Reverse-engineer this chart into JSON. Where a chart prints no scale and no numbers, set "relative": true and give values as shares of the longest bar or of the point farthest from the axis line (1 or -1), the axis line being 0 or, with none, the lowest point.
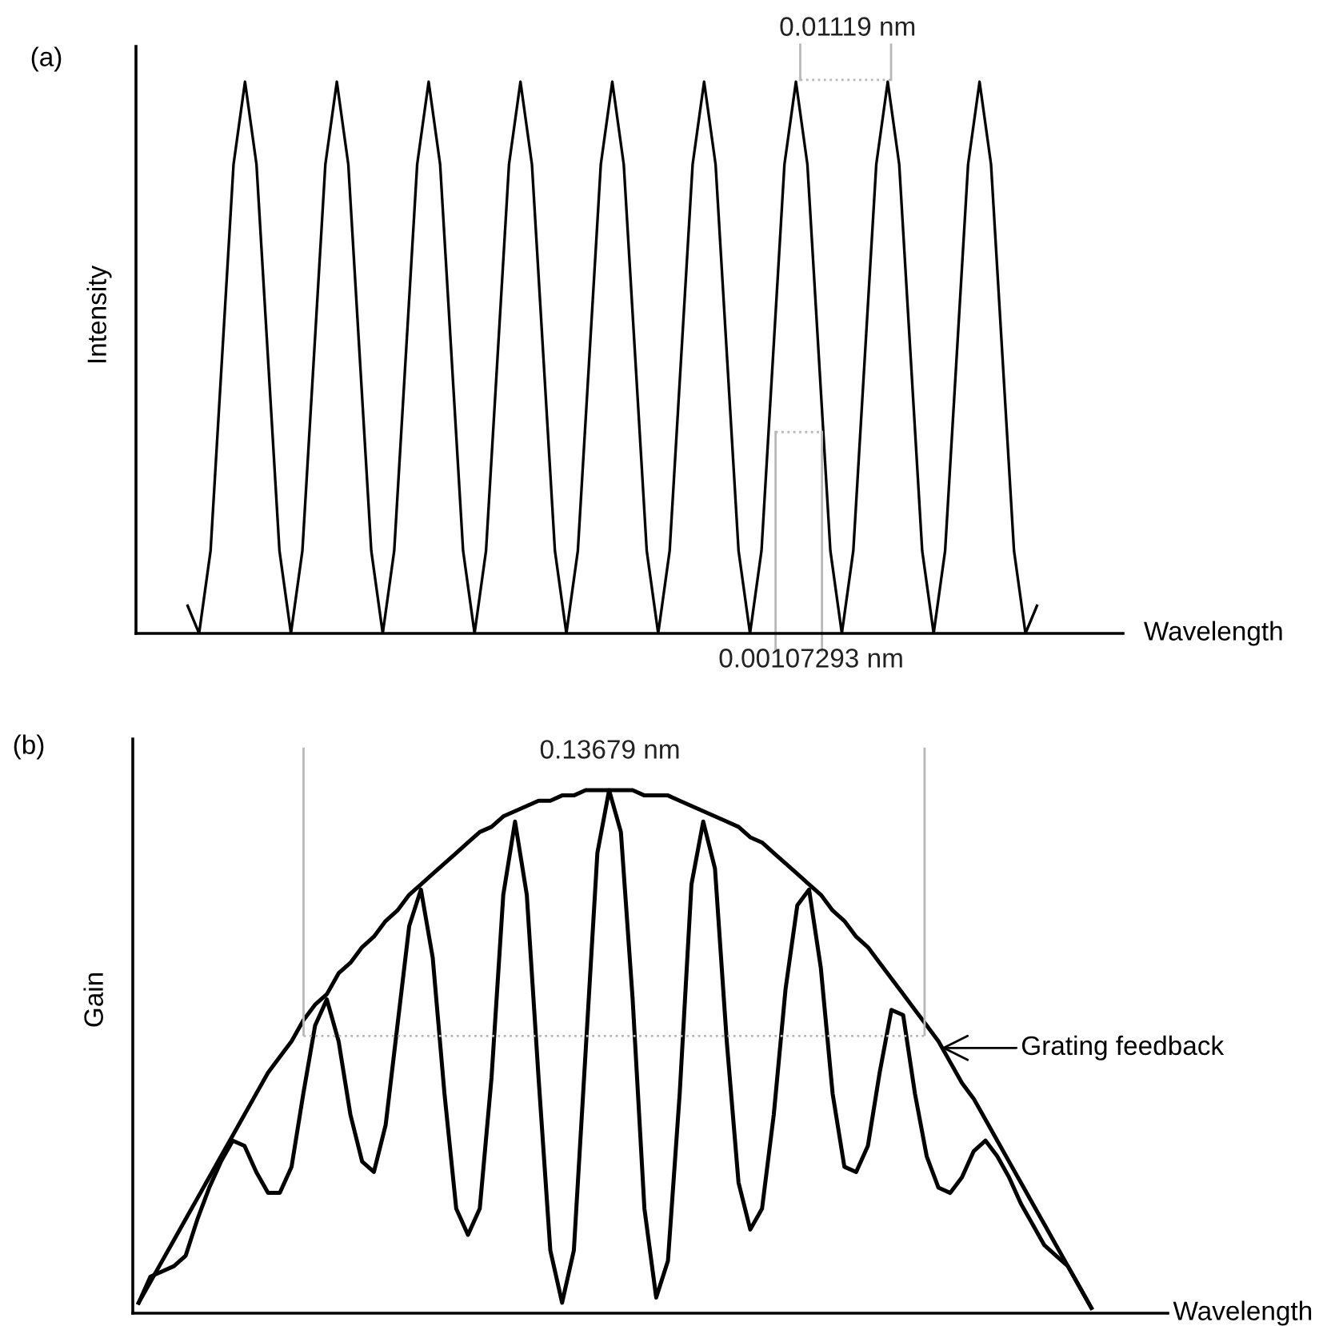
{
  "chart_data": [
    {
      "type": "line",
      "title": "(a)",
      "ylabel": "Intensity",
      "xlabel": "Wavelength",
      "relative": true,
      "annotations": [
        "0.01119 nm",
        "0.00107293 nm"
      ],
      "categories": [
        null,
        null,
        null,
        null,
        null,
        null,
        null,
        null,
        null,
        null,
        null,
        null,
        null,
        null,
        null,
        null,
        null,
        null,
        null,
        null,
        null,
        null,
        null,
        null,
        null,
        null,
        null,
        null,
        null,
        null,
        null,
        null,
        null,
        null,
        null,
        null,
        null,
        null,
        null,
        null,
        null,
        null,
        null,
        null,
        null,
        null,
        null,
        null,
        null,
        null,
        null,
        null,
        null,
        null,
        null,
        null,
        null,
        null,
        null,
        null,
        null,
        null,
        null,
        null,
        null,
        null,
        null,
        null,
        null,
        null,
        null,
        null,
        null,
        null,
        null,
        null,
        null,
        null,
        null,
        null,
        null,
        null,
        null,
        null,
        null,
        null
      ],
      "series": [
        {
          "color": "#000000",
          "values": [
            null,
            null,
            null,
            null,
            0.05,
            0,
            0.15,
            0.5,
            0.85,
            1,
            0.85,
            0.5,
            0.15,
            0,
            0.15,
            0.5,
            0.85,
            1,
            0.85,
            0.5,
            0.15,
            0,
            0.15,
            0.5,
            0.85,
            1,
            0.85,
            0.5,
            0.15,
            0,
            0.15,
            0.5,
            0.85,
            1,
            0.85,
            0.5,
            0.15,
            0,
            0.15,
            0.5,
            0.85,
            1,
            0.85,
            0.5,
            0.15,
            0,
            0.15,
            0.5,
            0.85,
            1,
            0.85,
            0.5,
            0.15,
            0,
            0.15,
            0.5,
            0.85,
            1,
            0.85,
            0.5,
            0.15,
            0,
            0.15,
            0.5,
            0.85,
            1,
            0.85,
            0.5,
            0.15,
            0,
            0.15,
            0.5,
            0.85,
            1,
            0.85,
            0.5,
            0.15,
            0,
            0.05,
            null,
            null,
            null,
            null,
            null,
            null,
            null
          ]
        }
      ]
    },
    {
      "type": "line",
      "title": "(b)",
      "ylabel": "Gain",
      "xlabel": "Wavelength",
      "relative": true,
      "annotations": [
        "0.13679 nm"
      ],
      "ref_lines": [
        {
          "axis": "y",
          "value": 0.53,
          "color": "#b8b8b8",
          "line_style": "dotted"
        }
      ],
      "categories": [
        null,
        null,
        null,
        null,
        null,
        null,
        null,
        null,
        null,
        null,
        null,
        null,
        null,
        null,
        null,
        null,
        null,
        null,
        null,
        null,
        null,
        null,
        null,
        null,
        null,
        null,
        null,
        null,
        null,
        null,
        null,
        null,
        null,
        null,
        null,
        null,
        null,
        null,
        null,
        null,
        null,
        null,
        null,
        null,
        null,
        null,
        null,
        null,
        null,
        null,
        null,
        null,
        null,
        null,
        null,
        null,
        null,
        null,
        null,
        null,
        null,
        null,
        null,
        null,
        null,
        null,
        null,
        null,
        null,
        null,
        null,
        null,
        null,
        null,
        null,
        null,
        null,
        null,
        null,
        null,
        null,
        null,
        null,
        null,
        null,
        null,
        null,
        null
      ],
      "series": [
        {
          "color": "#000000",
          "values": [
            0.02,
            0.07,
            0.08,
            0.09,
            0.11,
            0.18,
            0.24,
            0.29,
            0.33,
            0.32,
            0.27,
            0.23,
            0.23,
            0.28,
            0.42,
            0.55,
            0.6,
            0.52,
            0.38,
            0.29,
            0.27,
            0.36,
            0.55,
            0.74,
            0.81,
            0.68,
            0.42,
            0.2,
            0.15,
            0.2,
            0.45,
            0.8,
            0.94,
            0.8,
            0.45,
            0.12,
            0.02,
            0.12,
            0.5,
            0.88,
            1,
            0.92,
            0.6,
            0.2,
            0.03,
            0.1,
            0.42,
            0.82,
            0.94,
            0.85,
            0.52,
            0.25,
            0.16,
            0.2,
            0.38,
            0.62,
            0.78,
            0.81,
            0.66,
            0.42,
            0.28,
            0.27,
            0.32,
            0.46,
            0.58,
            0.57,
            0.42,
            0.3,
            0.24,
            0.23,
            0.26,
            0.31,
            0.33,
            0.3,
            0.26,
            0.21,
            0.17,
            0.13,
            0.11,
            0.09,
            0.05,
            0.01,
            null,
            null,
            null,
            null,
            null,
            null
          ]
        },
        {
          "name": "Grating feedback",
          "color": "#000000",
          "values": [
            0.02,
            0.06,
            0.1,
            0.14,
            0.18,
            0.22,
            0.26,
            0.3,
            0.34,
            0.38,
            0.42,
            0.46,
            0.49,
            0.52,
            0.56,
            0.59,
            0.61,
            0.65,
            0.67,
            0.7,
            0.72,
            0.75,
            0.77,
            0.8,
            0.82,
            0.84,
            0.86,
            0.88,
            0.9,
            0.92,
            0.93,
            0.95,
            0.96,
            0.97,
            0.98,
            0.98,
            0.99,
            0.99,
            1,
            1,
            1,
            1,
            1,
            0.99,
            0.99,
            0.99,
            0.98,
            0.97,
            0.96,
            0.95,
            0.94,
            0.93,
            0.91,
            0.9,
            0.88,
            0.86,
            0.84,
            0.82,
            0.8,
            0.77,
            0.75,
            0.72,
            0.7,
            0.67,
            0.64,
            0.61,
            0.58,
            0.55,
            0.52,
            0.48,
            0.44,
            0.41,
            0.37,
            0.33,
            0.29,
            0.25,
            0.21,
            0.17,
            0.13,
            0.09,
            0.05,
            0.01,
            null,
            null,
            null,
            null,
            null,
            null
          ]
        }
      ]
    }
  ]
}
